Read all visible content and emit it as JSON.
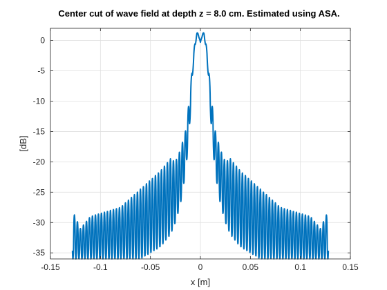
{
  "chart_data": {
    "type": "line",
    "title": "Center cut of wave field at depth z = 8.0 cm. Estimated using ASA.",
    "xlabel": "x [m]",
    "ylabel": "[dB]",
    "xlim": [
      -0.15,
      0.15
    ],
    "ylim": [
      -36,
      2
    ],
    "xticks": [
      -0.15,
      -0.1,
      -0.05,
      0,
      0.05,
      0.1,
      0.15
    ],
    "xtick_labels": [
      "-0.15",
      "-0.1",
      "-0.05",
      "0",
      "0.05",
      "0.1",
      "0.15"
    ],
    "yticks": [
      0,
      -5,
      -10,
      -15,
      -20,
      -25,
      -30,
      -35
    ],
    "ytick_labels": [
      "0",
      "-5",
      "-10",
      "-15",
      "-20",
      "-25",
      "-30",
      "-35"
    ],
    "grid": true,
    "legend": "none",
    "line_color": "#0072BD",
    "series": [
      {
        "x_range": [
          -0.128,
          0.128
        ],
        "x": [
          -0.128,
          -0.12,
          -0.11,
          -0.1,
          -0.09,
          -0.08,
          -0.07,
          -0.06,
          -0.05,
          -0.04,
          -0.03,
          -0.025,
          -0.02,
          -0.015,
          -0.012,
          -0.01,
          -0.008,
          -0.006,
          -0.004,
          -0.002,
          0,
          0.002,
          0.004,
          0.006,
          0.008,
          0.01,
          0.012,
          0.015,
          0.02,
          0.025,
          0.03,
          0.04,
          0.05,
          0.06,
          0.07,
          0.08,
          0.09,
          0.1,
          0.11,
          0.12,
          0.128
        ],
        "peak_db": [
          -28,
          -31,
          -29,
          -28.5,
          -28,
          -27.5,
          -26,
          -24.5,
          -23,
          -21.5,
          -19.5,
          -20,
          -18,
          -15,
          -11,
          -8,
          -4,
          -1,
          1.3,
          1.2,
          -0.3,
          1.2,
          1.3,
          -1,
          -4,
          -8,
          -11,
          -15,
          -18,
          -20,
          -19.5,
          -21.5,
          -23,
          -24.5,
          -26,
          -27.5,
          -28,
          -28.5,
          -29,
          -31,
          -28
        ],
        "trough_db": [
          -36,
          -36,
          -36,
          -36,
          -36,
          -36,
          -36,
          -36,
          -35,
          -34,
          -32,
          -30,
          -27,
          -22,
          -17,
          -12,
          -6,
          -2,
          0.5,
          0.8,
          -0.3,
          0.8,
          0.5,
          -2,
          -6,
          -12,
          -17,
          -22,
          -27,
          -30,
          -32,
          -34,
          -35,
          -36,
          -36,
          -36,
          -36,
          -36,
          -36,
          -36,
          -36
        ],
        "oscillation_period_m": 0.003
      }
    ]
  }
}
